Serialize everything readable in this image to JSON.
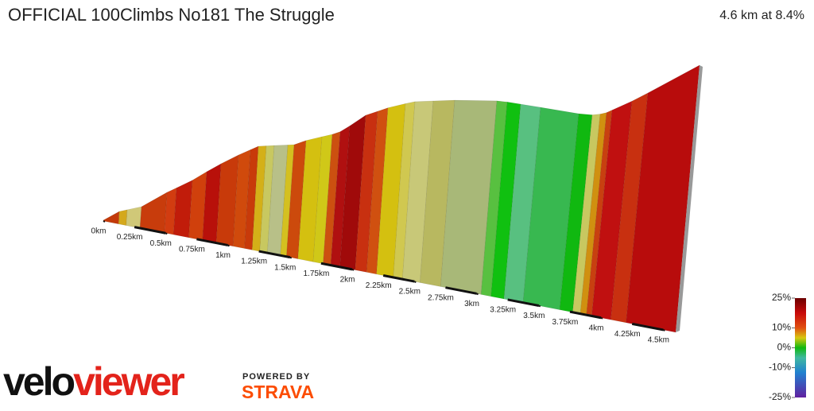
{
  "chart_data": {
    "type": "profile",
    "title": "OFFICIAL 100Climbs No181 The Struggle",
    "subtitle": "4.6 km at 8.4%",
    "xlim": [
      0,
      4.6
    ],
    "xticks": [
      {
        "value": 0,
        "label": "0km"
      },
      {
        "value": 0.25,
        "label": "0.25km"
      },
      {
        "value": 0.5,
        "label": "0.5km"
      },
      {
        "value": 0.75,
        "label": "0.75km"
      },
      {
        "value": 1,
        "label": "1km"
      },
      {
        "value": 1.25,
        "label": "1.25km"
      },
      {
        "value": 1.5,
        "label": "1.5km"
      },
      {
        "value": 1.75,
        "label": "1.75km"
      },
      {
        "value": 2,
        "label": "2km"
      },
      {
        "value": 2.25,
        "label": "2.25km"
      },
      {
        "value": 2.5,
        "label": "2.5km"
      },
      {
        "value": 2.75,
        "label": "2.75km"
      },
      {
        "value": 3,
        "label": "3km"
      },
      {
        "value": 3.25,
        "label": "3.25km"
      },
      {
        "value": 3.5,
        "label": "3.5km"
      },
      {
        "value": 3.75,
        "label": "3.75km"
      },
      {
        "value": 4,
        "label": "4km"
      },
      {
        "value": 4.25,
        "label": "4.25km"
      },
      {
        "value": 4.5,
        "label": "4.5km"
      }
    ],
    "colorbar": {
      "ylim": [
        -25,
        25
      ],
      "yticks": [
        {
          "value": 25,
          "label": "25%"
        },
        {
          "value": 10,
          "label": "10%"
        },
        {
          "value": 0,
          "label": "0%"
        },
        {
          "value": -10,
          "label": "-10%"
        },
        {
          "value": -25,
          "label": "-25%"
        }
      ]
    }
  },
  "branding": {
    "logo": [
      "velo",
      "viewer"
    ],
    "powered_by": "POWERED BY",
    "partner": "STRAVA"
  }
}
